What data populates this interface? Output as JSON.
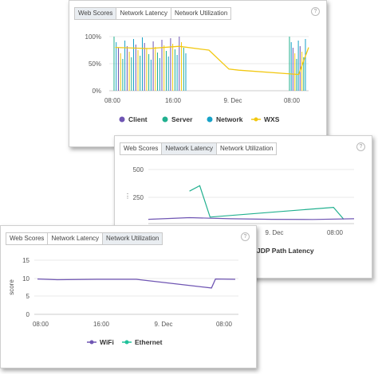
{
  "panel1": {
    "tabs": [
      "Web Scores",
      "Network Latency",
      "Network Utilization"
    ],
    "help": "?",
    "chart_data": {
      "type": "line",
      "y_ticks": [
        "100%",
        "50%",
        "0%"
      ],
      "x_ticks": [
        "08:00",
        "16:00",
        "9. Dec",
        "08:00"
      ],
      "ylim": [
        0,
        100
      ],
      "legend": [
        "Client",
        "Server",
        "Network",
        "WXS"
      ],
      "series": [
        {
          "name": "WXS",
          "x": [
            0.03,
            0.2,
            0.35,
            0.5,
            0.6,
            0.65,
            0.95,
            1.0
          ],
          "values": [
            80,
            78,
            82,
            75,
            40,
            38,
            30,
            80
          ]
        }
      ]
    },
    "colors": {
      "client": "#6f55b3",
      "server": "#21b08f",
      "network": "#17a2c8",
      "wxs": "#f2c811"
    }
  },
  "panel2": {
    "tabs": [
      "Web Scores",
      "Network Latency",
      "Network Utilization"
    ],
    "help": "?",
    "chart_data": {
      "type": "line",
      "y_ticks": [
        "500",
        "250"
      ],
      "x_ticks": [
        "9. Dec",
        "08:00"
      ],
      "legend_partial": "JDP Path Latency",
      "series": [
        {
          "x": [
            0.0,
            0.2,
            0.4,
            0.6,
            0.8,
            1.0
          ],
          "values": [
            40,
            55,
            45,
            40,
            38,
            45
          ]
        },
        {
          "x": [
            0.2,
            0.25,
            0.3,
            0.9,
            0.95
          ],
          "values": [
            300,
            350,
            60,
            150,
            40
          ]
        }
      ]
    }
  },
  "panel3": {
    "tabs": [
      "Web Scores",
      "Network Latency",
      "Network Utilization"
    ],
    "help": "?",
    "chart_data": {
      "type": "line",
      "ylabel": "score",
      "y_ticks": [
        "15",
        "10",
        "5",
        "0"
      ],
      "ylim": [
        0,
        15
      ],
      "x_ticks": [
        "08:00",
        "16:00",
        "9. Dec",
        "08:00"
      ],
      "legend": [
        "WiFi",
        "Ethernet"
      ],
      "series": [
        {
          "name": "WiFi",
          "x": [
            0,
            0.1,
            0.3,
            0.5,
            0.88,
            0.9,
            1.0
          ],
          "values": [
            9.8,
            9.6,
            9.7,
            9.7,
            7.3,
            9.8,
            9.7
          ]
        }
      ]
    },
    "colors": {
      "wifi": "#6f55b3",
      "ethernet": "#21c29b"
    }
  }
}
